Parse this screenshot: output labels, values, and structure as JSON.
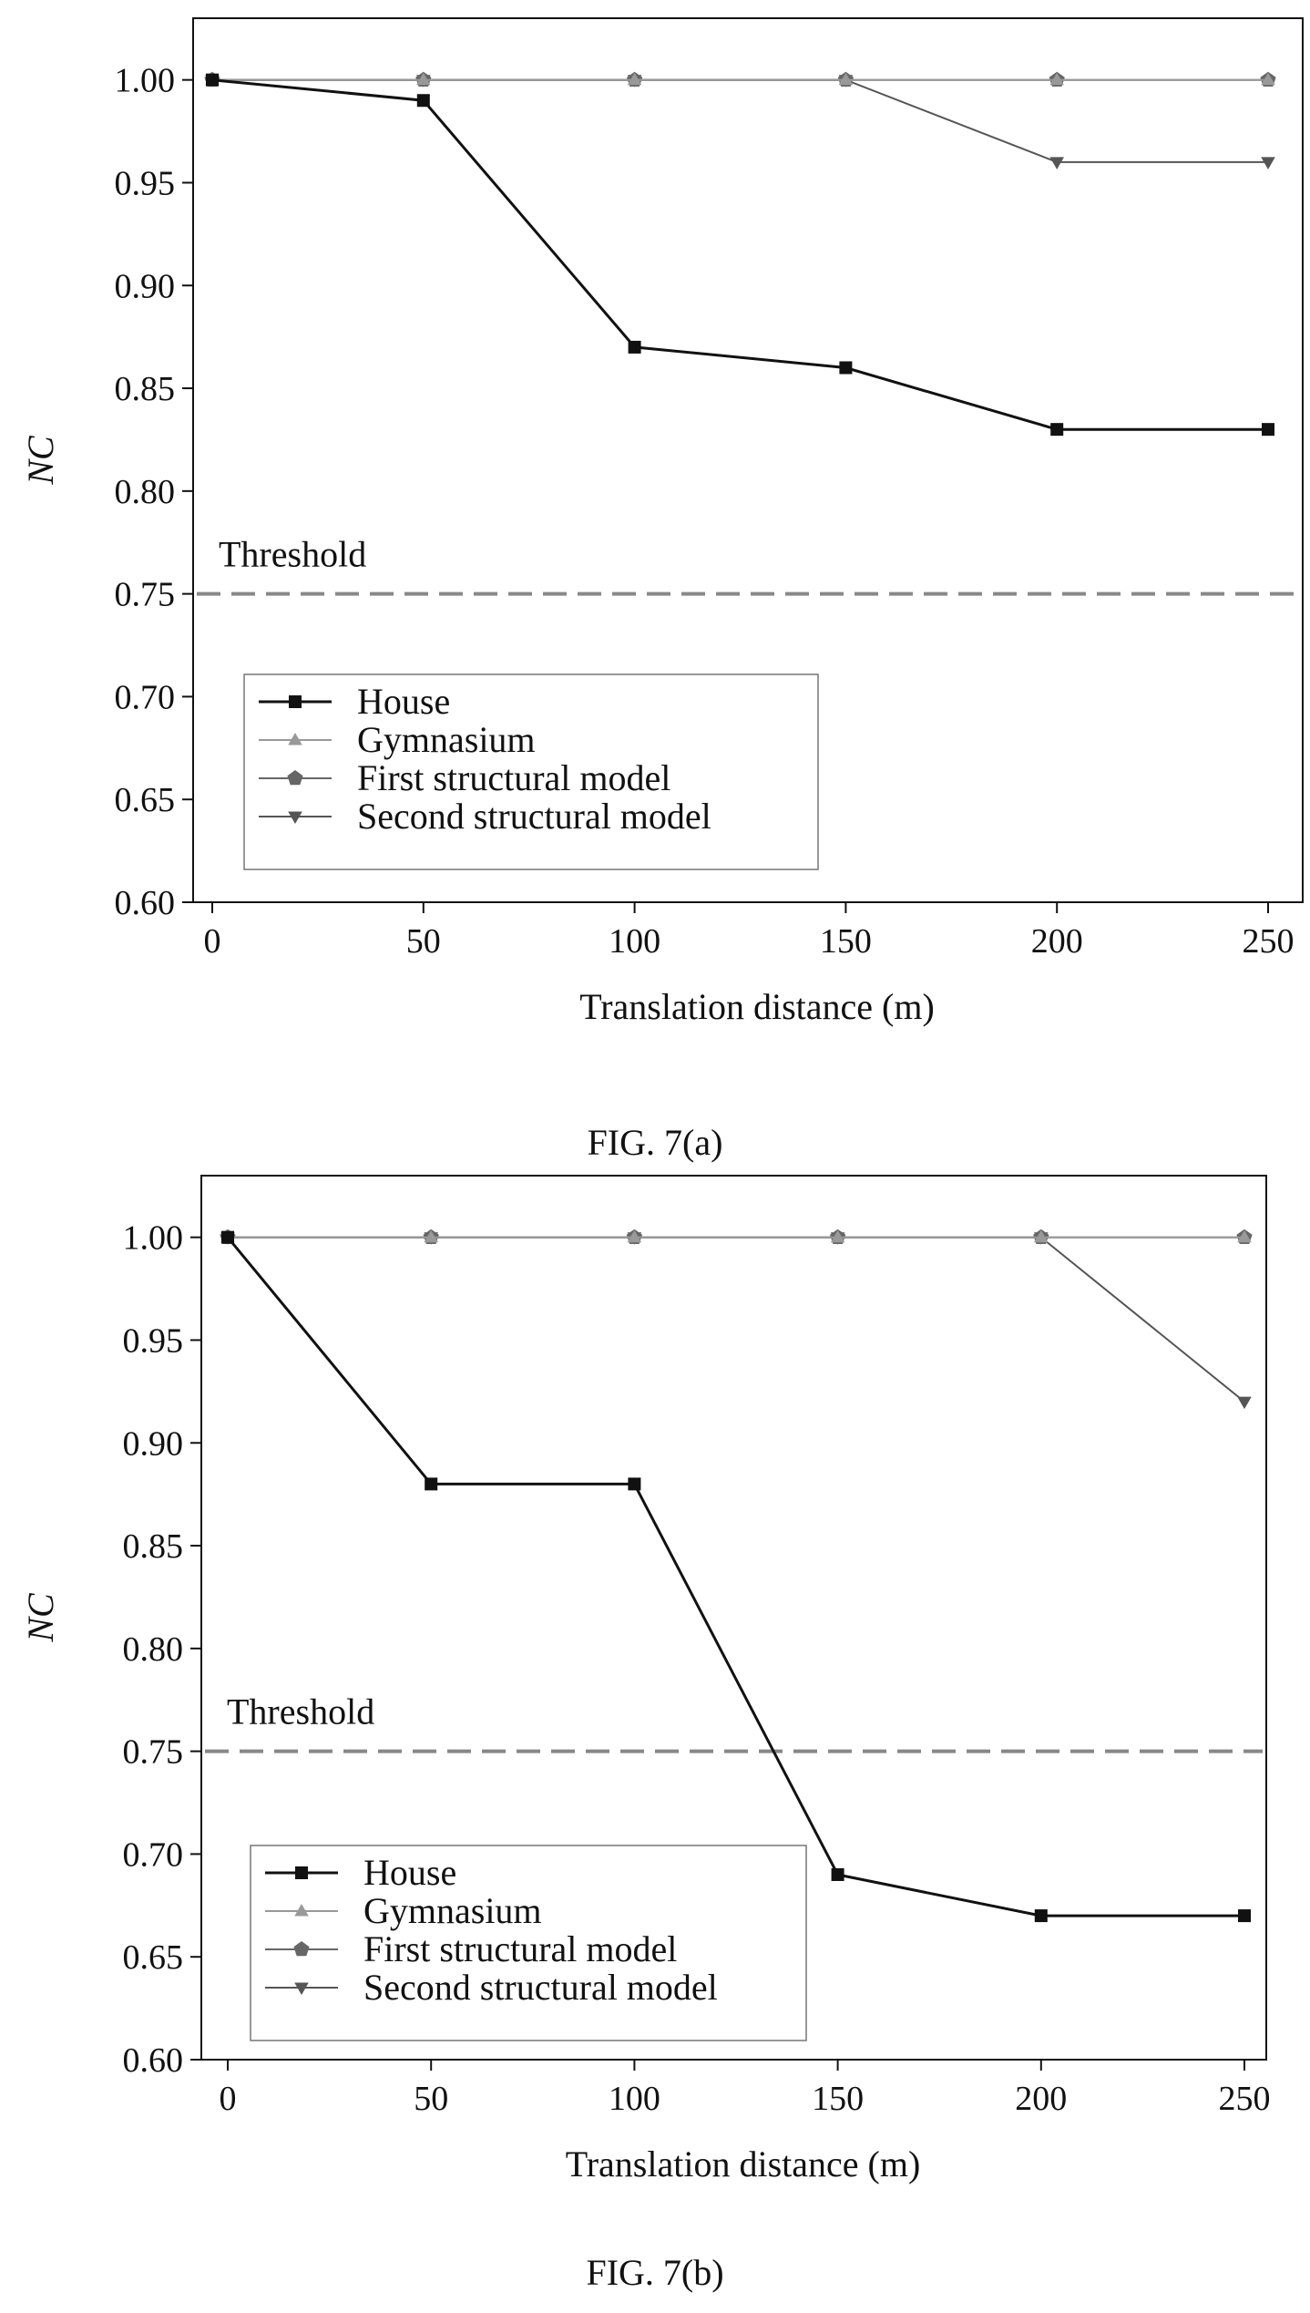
{
  "chart_data": [
    {
      "type": "line",
      "caption": "FIG. 7(a)",
      "xlabel": "Translation distance (m)",
      "ylabel": "NC",
      "x": [
        0,
        50,
        100,
        150,
        200,
        250
      ],
      "x_ticks": [
        "0",
        "50",
        "100",
        "150",
        "200",
        "250"
      ],
      "ylim": [
        0.6,
        1.03
      ],
      "y_ticks": [
        "0.60",
        "0.65",
        "0.70",
        "0.75",
        "0.80",
        "0.85",
        "0.90",
        "0.95",
        "1.00"
      ],
      "threshold": {
        "label": "Threshold",
        "value": 0.75
      },
      "legend_position": "bottom-left",
      "grid": false,
      "series": [
        {
          "name": "House",
          "marker": "square",
          "color": "#111111",
          "values": [
            1.0,
            0.99,
            0.87,
            0.86,
            0.83,
            0.83
          ]
        },
        {
          "name": "Gymnasium",
          "marker": "triangle-up",
          "color": "#999999",
          "values": [
            1.0,
            1.0,
            1.0,
            1.0,
            1.0,
            1.0
          ]
        },
        {
          "name": "First structural model",
          "marker": "pentagon",
          "color": "#666666",
          "values": [
            1.0,
            1.0,
            1.0,
            1.0,
            1.0,
            1.0
          ]
        },
        {
          "name": "Second structural model",
          "marker": "triangle-down",
          "color": "#555555",
          "values": [
            1.0,
            1.0,
            1.0,
            1.0,
            0.96,
            0.96
          ]
        }
      ]
    },
    {
      "type": "line",
      "caption": "FIG. 7(b)",
      "xlabel": "Translation distance (m)",
      "ylabel": "NC",
      "x": [
        0,
        50,
        100,
        150,
        200,
        250
      ],
      "x_ticks": [
        "0",
        "50",
        "100",
        "150",
        "200",
        "250"
      ],
      "ylim": [
        0.6,
        1.03
      ],
      "y_ticks": [
        "0.60",
        "0.65",
        "0.70",
        "0.75",
        "0.80",
        "0.85",
        "0.90",
        "0.95",
        "1.00"
      ],
      "threshold": {
        "label": "Threshold",
        "value": 0.75
      },
      "legend_position": "bottom-left",
      "grid": false,
      "series": [
        {
          "name": "House",
          "marker": "square",
          "color": "#111111",
          "values": [
            1.0,
            0.88,
            0.88,
            0.69,
            0.67,
            0.67
          ]
        },
        {
          "name": "Gymnasium",
          "marker": "triangle-up",
          "color": "#999999",
          "values": [
            1.0,
            1.0,
            1.0,
            1.0,
            1.0,
            1.0
          ]
        },
        {
          "name": "First structural model",
          "marker": "pentagon",
          "color": "#666666",
          "values": [
            1.0,
            1.0,
            1.0,
            1.0,
            1.0,
            1.0
          ]
        },
        {
          "name": "Second structural model",
          "marker": "triangle-down",
          "color": "#555555",
          "values": [
            1.0,
            1.0,
            1.0,
            1.0,
            1.0,
            0.92
          ]
        }
      ]
    }
  ]
}
